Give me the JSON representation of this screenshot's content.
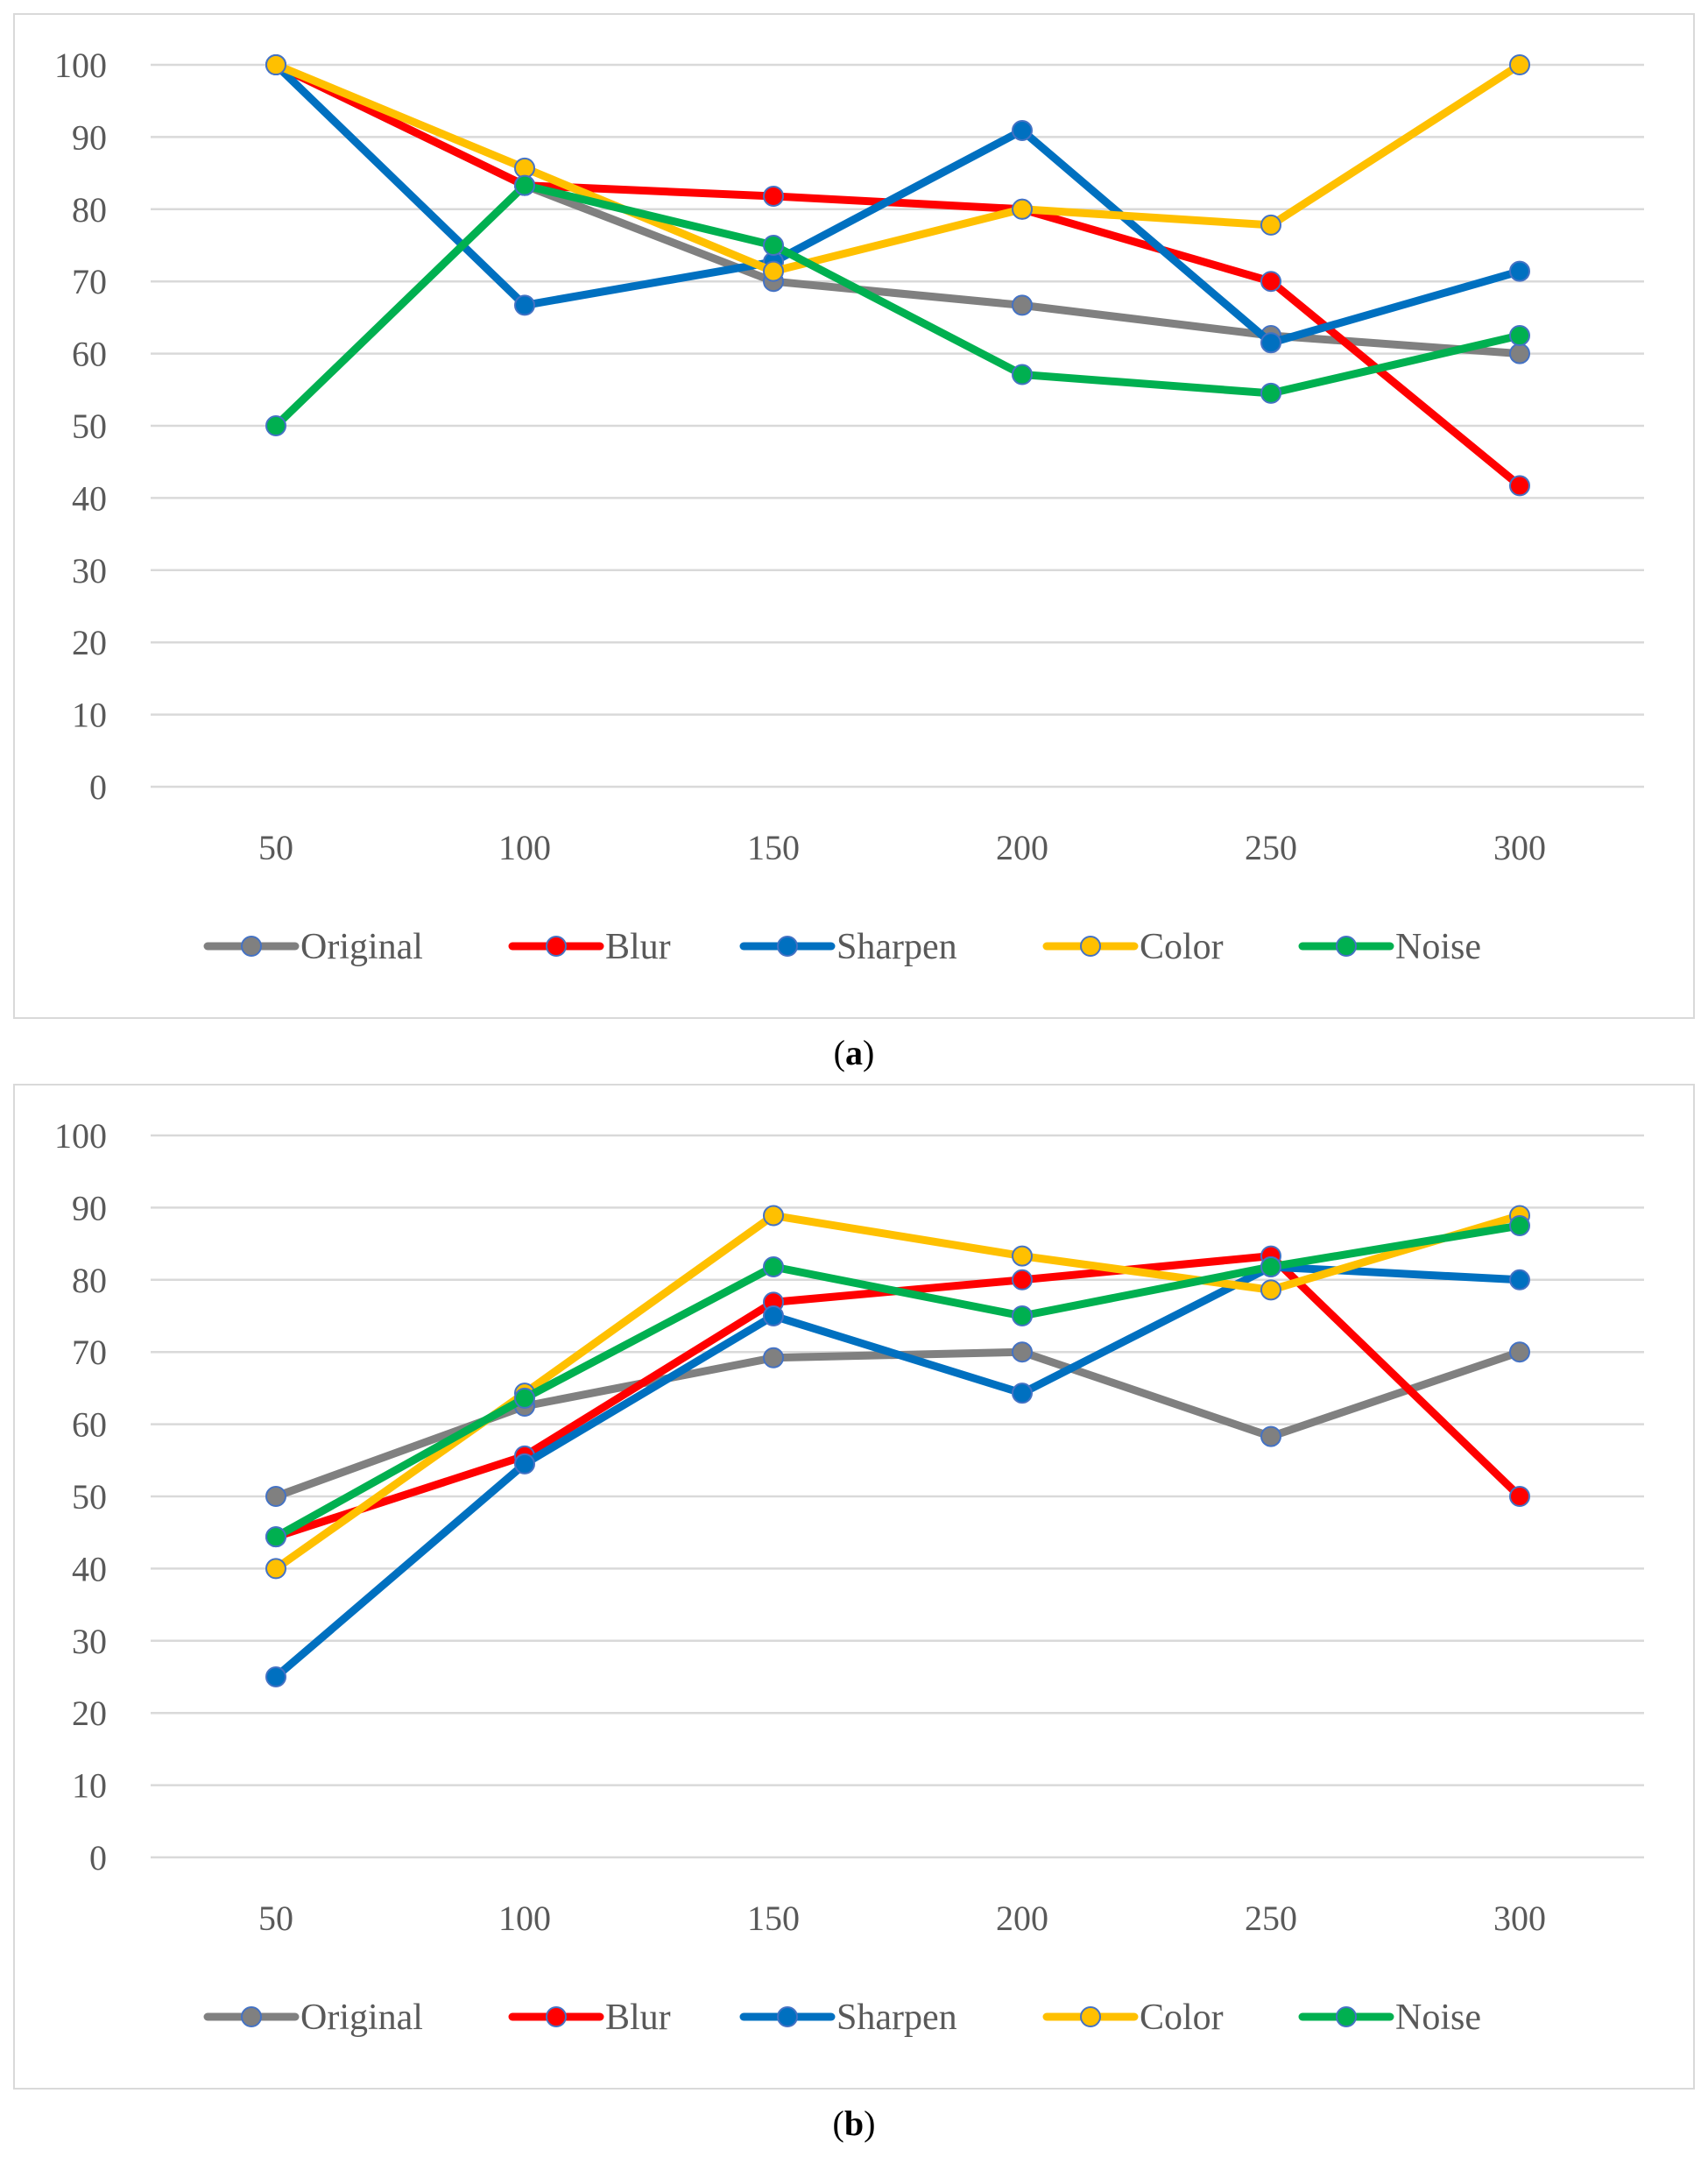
{
  "colors": {
    "Original": "#808080",
    "Blur": "#ff0000",
    "Sharpen": "#0070c0",
    "Color": "#ffc000",
    "Noise": "#00b050",
    "gridline": "#d9d9d9",
    "marker_edge": "#4472c4"
  },
  "chart_data": [
    {
      "type": "line",
      "caption": "a",
      "categories": [
        "50",
        "100",
        "150",
        "200",
        "250",
        "300"
      ],
      "ylim": [
        0,
        100
      ],
      "yticks": [
        "0",
        "10",
        "20",
        "30",
        "40",
        "50",
        "60",
        "70",
        "80",
        "90",
        "100"
      ],
      "legend": "bottom",
      "series": [
        {
          "name": "Original",
          "values": [
            100,
            83.3,
            70,
            66.7,
            62.5,
            60
          ]
        },
        {
          "name": "Blur",
          "values": [
            100,
            83.3,
            81.8,
            80,
            70,
            41.7
          ]
        },
        {
          "name": "Sharpen",
          "values": [
            100,
            66.7,
            72.7,
            90.9,
            61.5,
            71.4
          ]
        },
        {
          "name": "Color",
          "values": [
            100,
            85.7,
            71.4,
            80,
            77.8,
            100
          ]
        },
        {
          "name": "Noise",
          "values": [
            50,
            83.3,
            75,
            57.1,
            54.5,
            62.5
          ]
        }
      ]
    },
    {
      "type": "line",
      "caption": "b",
      "categories": [
        "50",
        "100",
        "150",
        "200",
        "250",
        "300"
      ],
      "ylim": [
        0,
        100
      ],
      "yticks": [
        "0",
        "10",
        "20",
        "30",
        "40",
        "50",
        "60",
        "70",
        "80",
        "90",
        "100"
      ],
      "legend": "bottom",
      "series": [
        {
          "name": "Original",
          "values": [
            50,
            62.5,
            69.2,
            70,
            58.3,
            70
          ]
        },
        {
          "name": "Blur",
          "values": [
            44.4,
            55.6,
            76.9,
            80,
            83.3,
            50
          ]
        },
        {
          "name": "Sharpen",
          "values": [
            25,
            54.5,
            75,
            64.3,
            81.8,
            80
          ]
        },
        {
          "name": "Color",
          "values": [
            40,
            64.3,
            88.9,
            83.3,
            78.6,
            88.9
          ]
        },
        {
          "name": "Noise",
          "values": [
            44.4,
            63.6,
            81.8,
            75,
            81.8,
            87.5
          ]
        }
      ]
    }
  ]
}
